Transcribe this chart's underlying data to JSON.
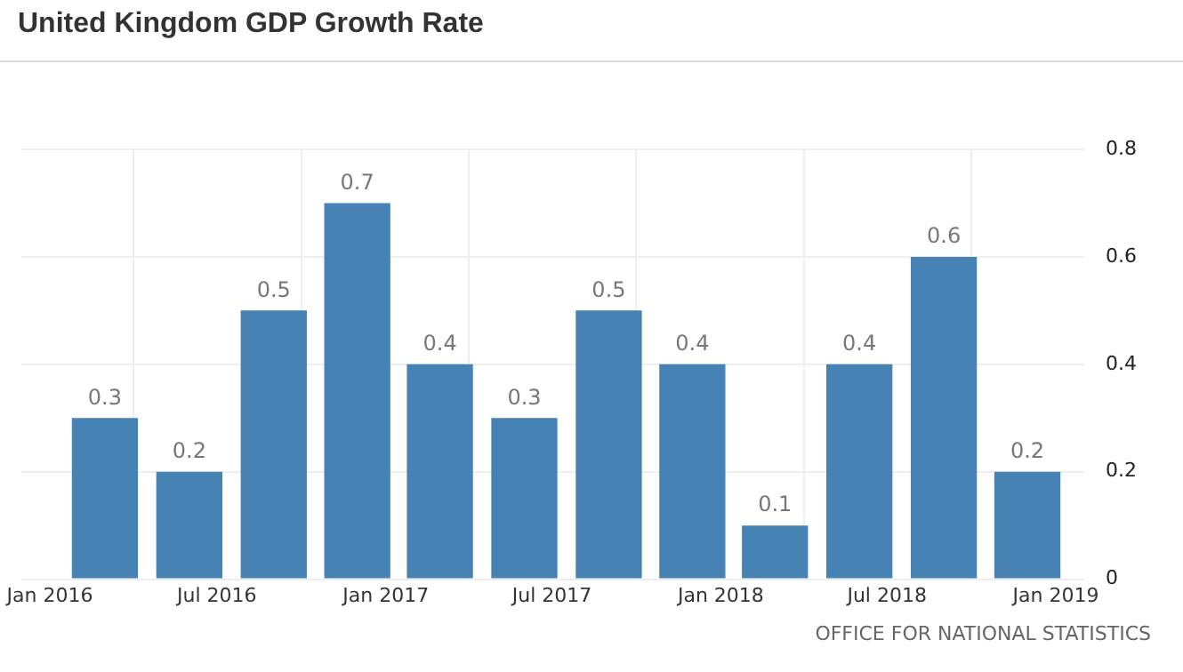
{
  "chart_data": {
    "type": "bar",
    "title": "United Kingdom GDP Growth Rate",
    "x": [
      "2016-03",
      "2016-06",
      "2016-09",
      "2016-12",
      "2017-03",
      "2017-06",
      "2017-09",
      "2017-12",
      "2018-03",
      "2018-06",
      "2018-09",
      "2018-12"
    ],
    "values": [
      0.3,
      0.2,
      0.5,
      0.7,
      0.4,
      0.3,
      0.5,
      0.4,
      0.1,
      0.4,
      0.6,
      0.2
    ],
    "color": "#4682b4",
    "xlim": [
      "2015-12",
      "2019-02"
    ],
    "xticks": [
      {
        "value": "2016-01",
        "label": "Jan 2016"
      },
      {
        "value": "2016-07",
        "label": "Jul 2016"
      },
      {
        "value": "2017-01",
        "label": "Jan 2017"
      },
      {
        "value": "2017-07",
        "label": "Jul 2017"
      },
      {
        "value": "2018-01",
        "label": "Jan 2018"
      },
      {
        "value": "2018-07",
        "label": "Jul 2018"
      },
      {
        "value": "2019-01",
        "label": "Jan 2019"
      }
    ],
    "ylim": [
      0,
      0.8
    ],
    "yticks": [
      0,
      0.2,
      0.4,
      0.6,
      0.8
    ],
    "grid": true,
    "data_labels": true,
    "annotations": [
      "OFFICE FOR NATIONAL STATISTICS"
    ]
  }
}
